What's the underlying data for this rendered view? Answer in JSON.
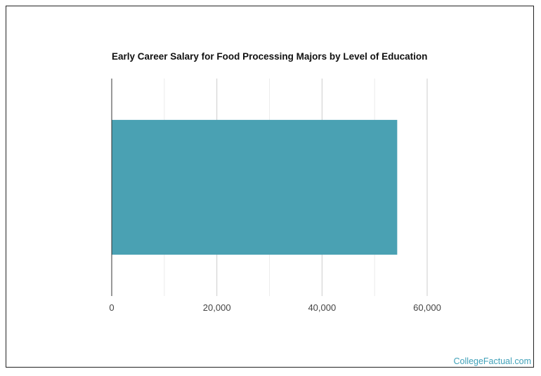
{
  "chart_data": {
    "type": "bar",
    "orientation": "horizontal",
    "title": "Early Career Salary for Food Processing Majors by Level of Education",
    "categories": [
      ""
    ],
    "values": [
      54300
    ],
    "xlim": [
      0,
      60000
    ],
    "x_ticks": [
      0,
      20000,
      40000,
      60000
    ],
    "x_tick_labels": [
      "0",
      "20,000",
      "40,000",
      "60,000"
    ],
    "minor_grid_step": 10000,
    "grid": true,
    "bar_color": "#4aa1b3"
  },
  "watermark": "CollegeFactual.com"
}
